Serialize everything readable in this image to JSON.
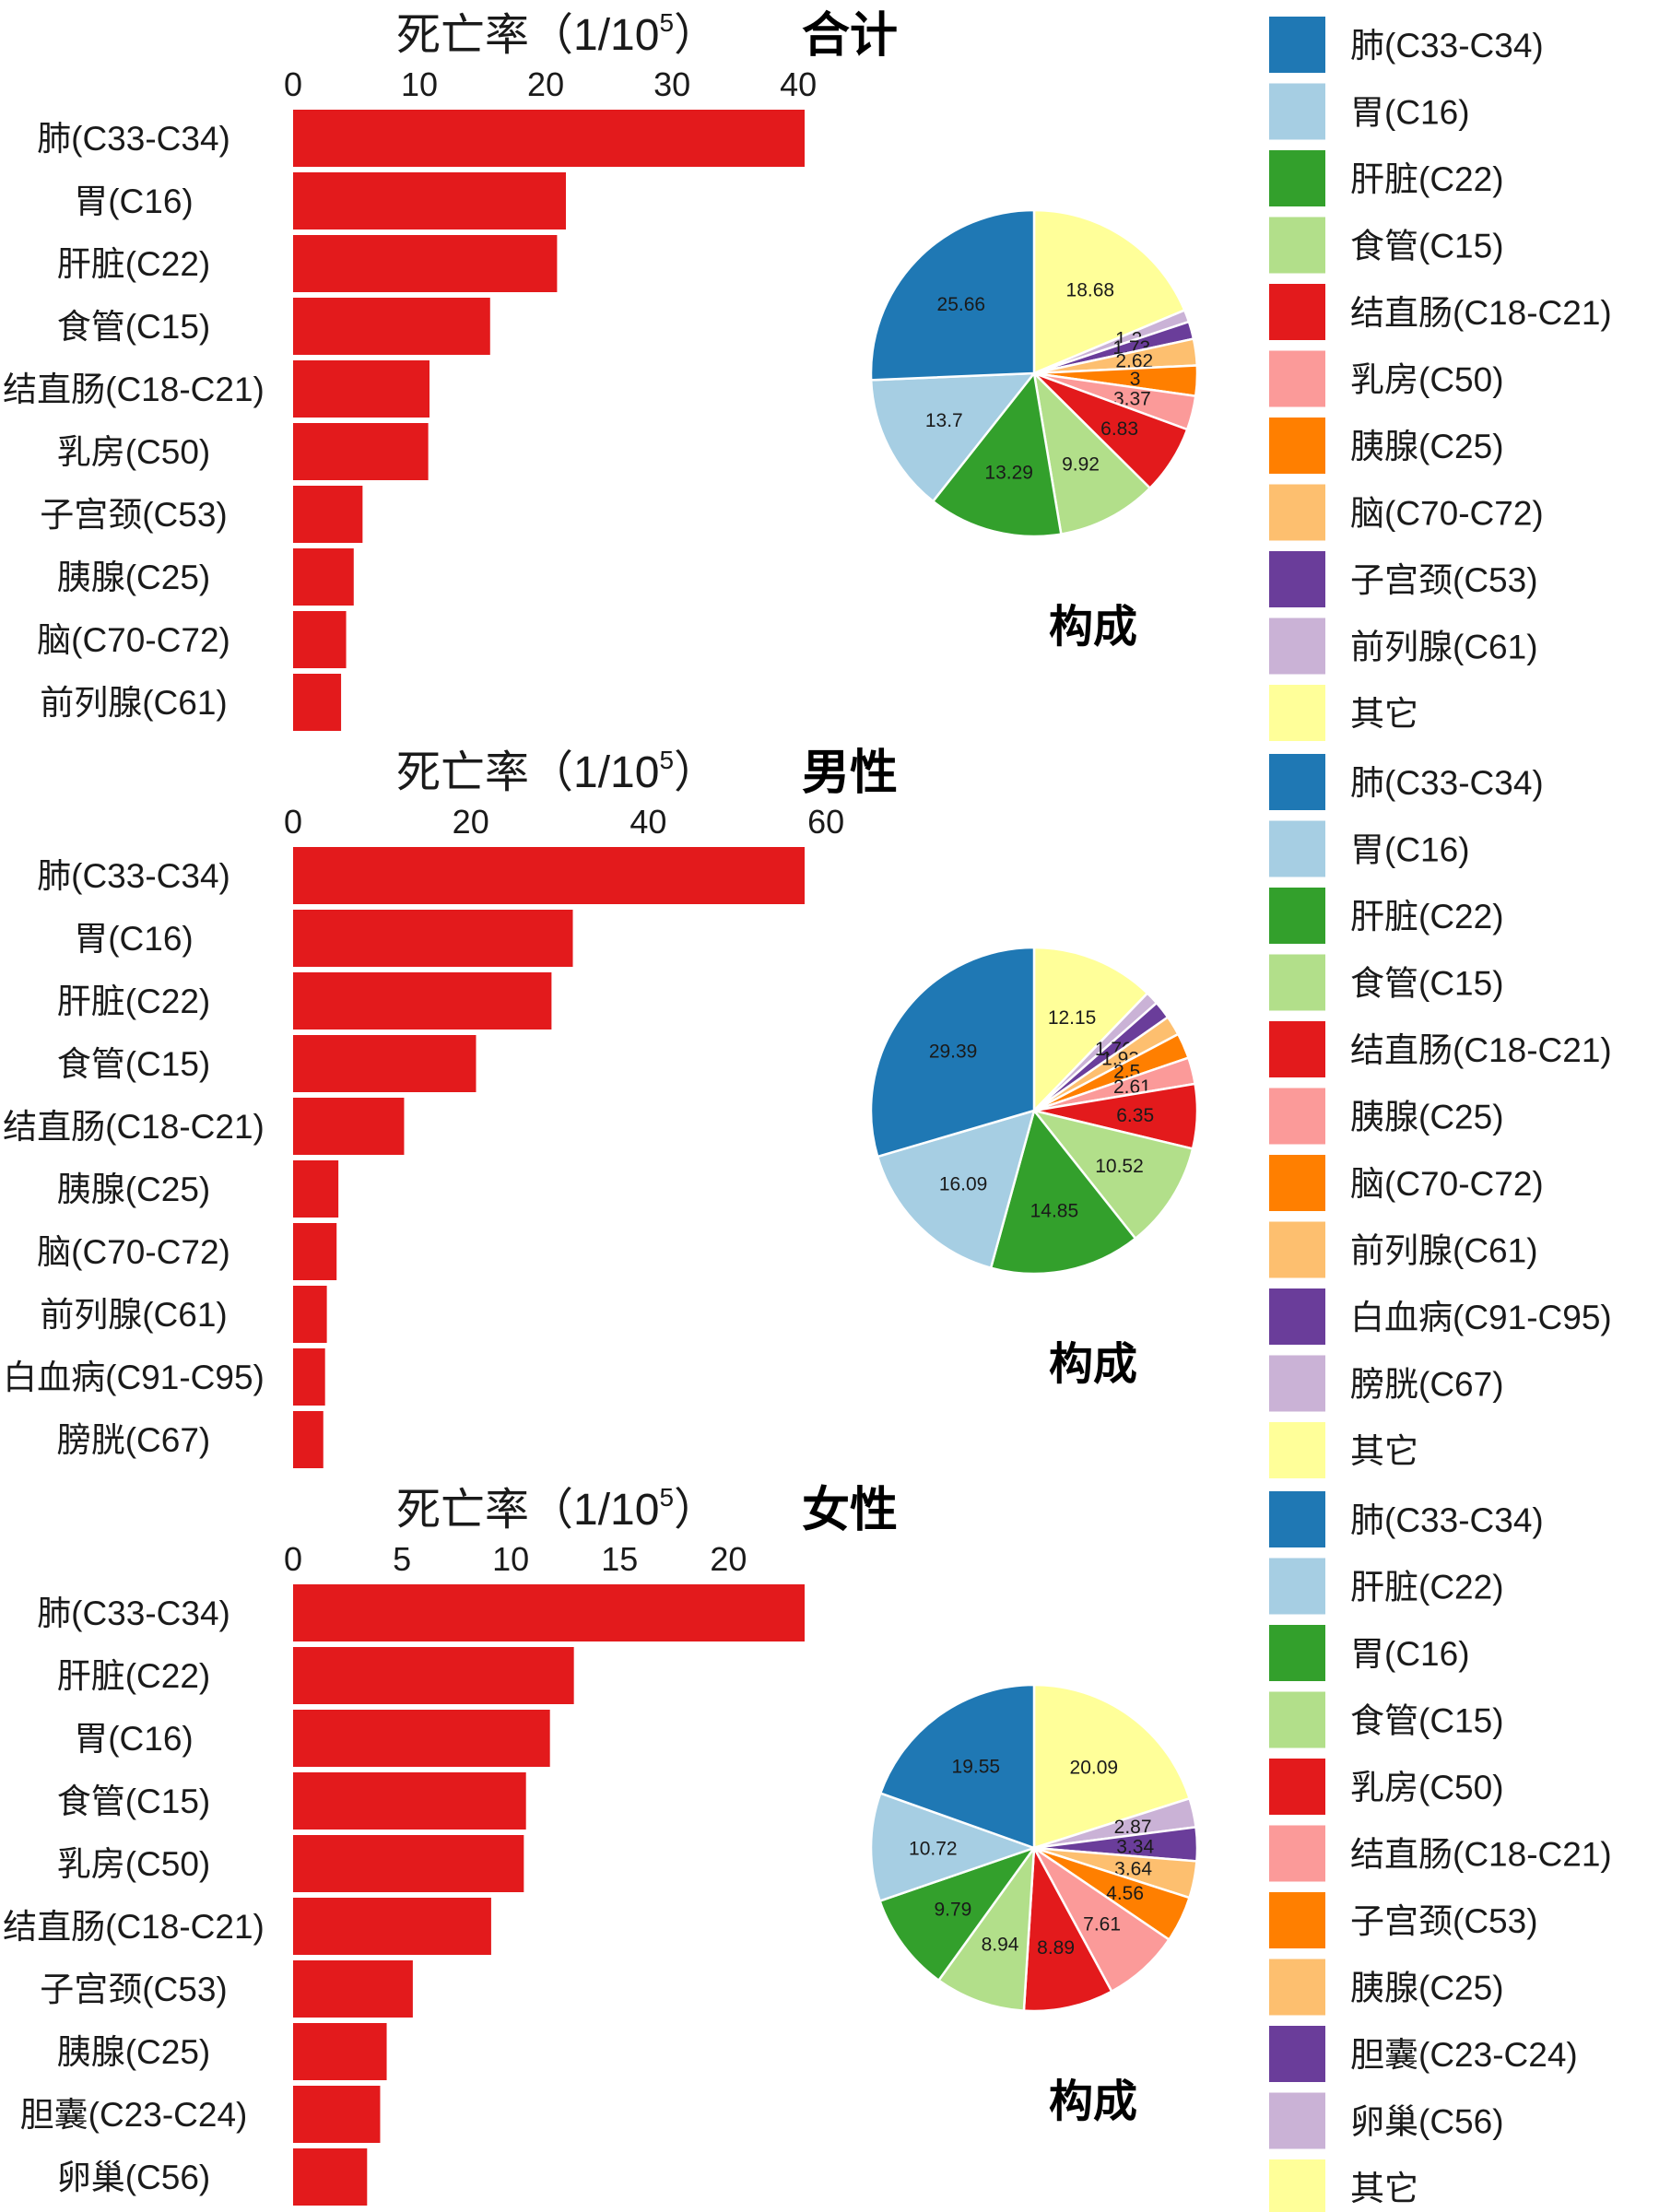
{
  "chart_data": [
    {
      "type": "bar",
      "panel_title": "合计",
      "xlabel": "死亡率（1/10",
      "xlabel_sup": "5",
      "xlabel_close": "）",
      "xlim": [
        0,
        40.5
      ],
      "xticks": [
        0,
        10,
        20,
        30,
        40
      ],
      "categories": [
        "肺(C33-C34)",
        "胃(C16)",
        "肝脏(C22)",
        "食管(C15)",
        "结直肠(C18-C21)",
        "乳房(C50)",
        "子宫颈(C53)",
        "胰腺(C25)",
        "脑(C70-C72)",
        "前列腺(C61)"
      ],
      "values": [
        40.5,
        21.6,
        20.9,
        15.6,
        10.8,
        10.7,
        5.5,
        4.8,
        4.2,
        3.8
      ],
      "bar_color": "#E31A1C",
      "pie": {
        "title": "构成",
        "labels": [
          "肺(C33-C34)",
          "胃(C16)",
          "肝脏(C22)",
          "食管(C15)",
          "结直肠(C18-C21)",
          "乳房(C50)",
          "胰腺(C25)",
          "脑(C70-C72)",
          "子宫颈(C53)",
          "前列腺(C61)",
          "其它"
        ],
        "values": [
          25.66,
          13.7,
          13.29,
          9.92,
          6.83,
          3.37,
          3,
          2.62,
          1.73,
          1.2,
          18.68
        ],
        "value_labels": [
          "25.66",
          "13.7",
          "13.29",
          "9.92",
          "6.83",
          "3.37",
          "3",
          "2.62",
          "1.73",
          "1.2",
          "18.68"
        ],
        "colors": [
          "#1F78B4",
          "#A6CEE3",
          "#33A02C",
          "#B2DF8A",
          "#E31A1C",
          "#FB9A99",
          "#FF7F00",
          "#FDBF6F",
          "#6A3D9A",
          "#CAB2D6",
          "#FFFF99"
        ]
      }
    },
    {
      "type": "bar",
      "panel_title": "男性",
      "xlabel": "死亡率（1/10",
      "xlabel_sup": "5",
      "xlabel_close": "）",
      "xlim": [
        0,
        57.6
      ],
      "xticks": [
        0,
        20,
        40,
        60
      ],
      "categories": [
        "肺(C33-C34)",
        "胃(C16)",
        "肝脏(C22)",
        "食管(C15)",
        "结直肠(C18-C21)",
        "胰腺(C25)",
        "脑(C70-C72)",
        "前列腺(C61)",
        "白血病(C91-C95)",
        "膀胱(C67)"
      ],
      "values": [
        57.6,
        31.5,
        29.1,
        20.6,
        12.5,
        5.1,
        4.9,
        3.8,
        3.6,
        3.4
      ],
      "bar_color": "#E31A1C",
      "pie": {
        "title": "构成",
        "labels": [
          "肺(C33-C34)",
          "胃(C16)",
          "肝脏(C22)",
          "食管(C15)",
          "结直肠(C18-C21)",
          "胰腺(C25)",
          "脑(C70-C72)",
          "前列腺(C61)",
          "白血病(C91-C95)",
          "膀胱(C67)",
          "其它"
        ],
        "values": [
          29.39,
          16.09,
          14.85,
          10.52,
          6.35,
          2.61,
          2.5,
          1.93,
          1.76,
          1.3,
          12.15
        ],
        "value_labels": [
          "29.39",
          "16.09",
          "14.85",
          "10.52",
          "6.35",
          "2.61",
          "2.5",
          "1.93",
          "1.76",
          "",
          "12.15"
        ],
        "colors": [
          "#1F78B4",
          "#A6CEE3",
          "#33A02C",
          "#B2DF8A",
          "#E31A1C",
          "#FB9A99",
          "#FF7F00",
          "#FDBF6F",
          "#6A3D9A",
          "#CAB2D6",
          "#FFFF99"
        ]
      }
    },
    {
      "type": "bar",
      "panel_title": "女性",
      "xlabel": "死亡率（1/10",
      "xlabel_sup": "5",
      "xlabel_close": "）",
      "xlim": [
        0,
        23.5
      ],
      "xticks": [
        0,
        5,
        10,
        15,
        20
      ],
      "categories": [
        "肺(C33-C34)",
        "肝脏(C22)",
        "胃(C16)",
        "食管(C15)",
        "乳房(C50)",
        "结直肠(C18-C21)",
        "子宫颈(C53)",
        "胰腺(C25)",
        "胆囊(C23-C24)",
        "卵巢(C56)"
      ],
      "values": [
        23.5,
        12.9,
        11.8,
        10.7,
        10.6,
        9.1,
        5.5,
        4.3,
        4.0,
        3.4
      ],
      "bar_color": "#E31A1C",
      "pie": {
        "title": "构成",
        "labels": [
          "肺(C33-C34)",
          "肝脏(C22)",
          "胃(C16)",
          "食管(C15)",
          "乳房(C50)",
          "结直肠(C18-C21)",
          "子宫颈(C53)",
          "胰腺(C25)",
          "胆囊(C23-C24)",
          "卵巢(C56)",
          "其它"
        ],
        "values": [
          19.55,
          10.72,
          9.79,
          8.94,
          8.89,
          7.61,
          4.56,
          3.64,
          3.34,
          2.87,
          20.09
        ],
        "value_labels": [
          "19.55",
          "10.72",
          "9.79",
          "8.94",
          "8.89",
          "7.61",
          "4.56",
          "3.64",
          "3.34",
          "2.87",
          "20.09"
        ],
        "colors": [
          "#1F78B4",
          "#A6CEE3",
          "#33A02C",
          "#B2DF8A",
          "#E31A1C",
          "#FB9A99",
          "#FF7F00",
          "#FDBF6F",
          "#6A3D9A",
          "#CAB2D6",
          "#FFFF99"
        ]
      }
    }
  ]
}
